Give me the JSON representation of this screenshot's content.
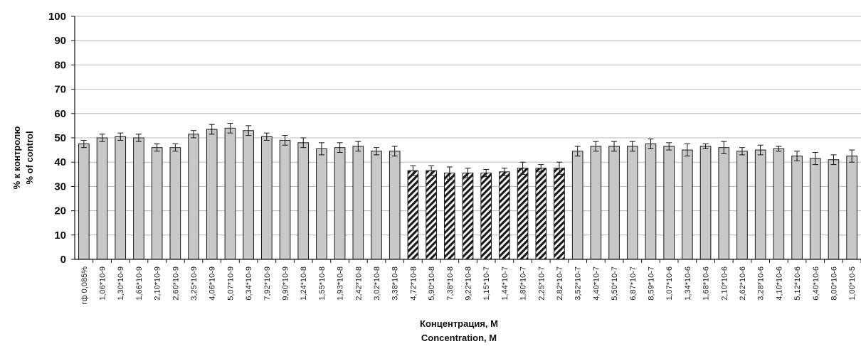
{
  "chart_data": {
    "type": "bar",
    "ylabel_ru": "% к контролю",
    "ylabel_en": "% of control",
    "xlabel_ru": "Концентрация, М",
    "xlabel_en": "Concentration, M",
    "ylim": [
      0,
      100
    ],
    "yticks": [
      0,
      10,
      20,
      30,
      40,
      50,
      60,
      70,
      80,
      90,
      100
    ],
    "grid": true,
    "legend": "none",
    "colors": {
      "plain_bar": "#c8c8c8",
      "bar_edge": "#1a1a1a",
      "hatch": "#1a1a1a",
      "grid": "#b8b8b8"
    },
    "categories": [
      "гф 0,085%",
      "1,06*10-9",
      "1,30*10-9",
      "1,66*10-9",
      "2,10*10-9",
      "2,60*10-9",
      "3,25*10-9",
      "4,06*10-9",
      "5,07*10-9",
      "6,34*10-9",
      "7,92*10-9",
      "9,90*10-9",
      "1,24*10-8",
      "1,55*10-8",
      "1,93*10-8",
      "2,42*10-8",
      "3,02*10-8",
      "3,38*10-8",
      "4,72*10-8",
      "5,90*10-8",
      "7,38*10-8",
      "9,22*10-8",
      "1,15*10-7",
      "1,44*10-7",
      "1,80*10-7",
      "2,25*10-7",
      "2,82*10-7",
      "3,52*10-7",
      "4,40*10-7",
      "5,50*10-7",
      "6,87*10-7",
      "8,59*10-7",
      "1,07*10-6",
      "1,34*10-6",
      "1,68*10-6",
      "2,10*10-6",
      "2,62*10-6",
      "3,28*10-6",
      "4,10*10-6",
      "5,12*10-6",
      "6,40*10-6",
      "8,00*10-6",
      "1,00*10-5"
    ],
    "values": [
      47.5,
      50,
      50.5,
      50,
      46,
      46,
      51.5,
      53.5,
      54,
      53,
      50.5,
      49,
      48,
      45.5,
      46,
      46.5,
      44.5,
      44.5,
      36.5,
      36.5,
      35.5,
      35.5,
      35.5,
      36,
      37.5,
      37.5,
      37.5,
      44.5,
      46.5,
      46.5,
      46.5,
      47.5,
      46.5,
      45,
      46.5,
      46,
      44.5,
      45,
      45.5,
      42.5,
      41.5,
      41,
      42.5
    ],
    "errors": [
      1.5,
      1.5,
      1.5,
      1.5,
      1.5,
      1.5,
      1.5,
      2,
      2,
      2,
      1.5,
      2,
      2,
      2.5,
      2,
      2,
      1.5,
      2,
      2,
      2,
      2.5,
      2,
      1.5,
      1.5,
      2.5,
      1.5,
      2.5,
      2,
      2,
      2,
      2,
      2,
      1.5,
      2.5,
      1,
      2.5,
      1.5,
      2,
      1,
      2,
      2.5,
      2,
      2.5
    ],
    "hatched": [
      false,
      false,
      false,
      false,
      false,
      false,
      false,
      false,
      false,
      false,
      false,
      false,
      false,
      false,
      false,
      false,
      false,
      false,
      true,
      true,
      true,
      true,
      true,
      true,
      true,
      true,
      true,
      false,
      false,
      false,
      false,
      false,
      false,
      false,
      false,
      false,
      false,
      false,
      false,
      false,
      false,
      false,
      false
    ]
  }
}
